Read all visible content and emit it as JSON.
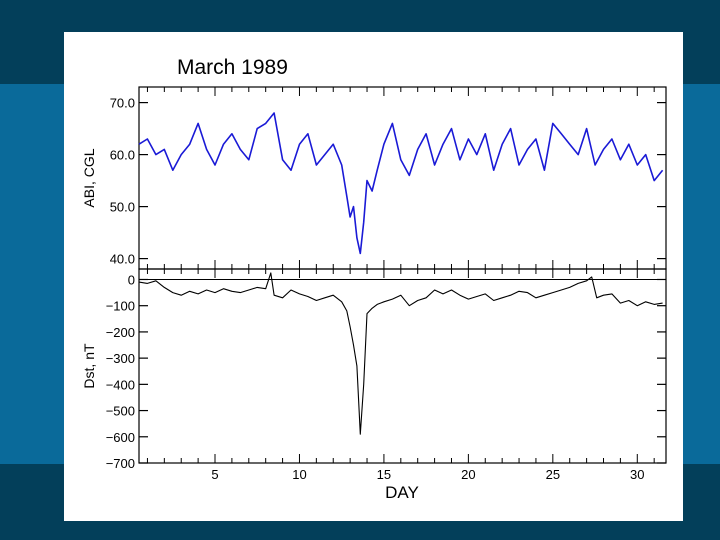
{
  "slide": {
    "background_colors": {
      "outer": "#033f5a",
      "inner": "#0a6a9a",
      "sheet": "#ffffff"
    }
  },
  "chart_data": {
    "type": "line",
    "title": "March 1989",
    "xlabel": "DAY",
    "xlim": [
      0.5,
      31.7
    ],
    "xticks": [
      5,
      10,
      15,
      20,
      25,
      30
    ],
    "panels": [
      {
        "name": "abi",
        "ylabel": "ABI, CGL",
        "ylim": [
          38,
          73
        ],
        "ytick_labels": [
          "70.0",
          "60.0",
          "50.0",
          "40.0"
        ],
        "ytick_values": [
          70,
          60,
          50,
          40
        ],
        "color": "#1a1ad6",
        "series": [
          {
            "values_x": [
              0.5,
              1,
              1.5,
              2,
              2.5,
              3,
              3.5,
              4,
              4.5,
              5,
              5.5,
              6,
              6.5,
              7,
              7.5,
              8,
              8.5,
              9,
              9.5,
              10,
              10.5,
              11,
              11.5,
              12,
              12.5,
              12.8,
              13,
              13.2,
              13.4,
              13.6,
              13.8,
              14,
              14.3,
              14.6,
              15,
              15.5,
              16,
              16.5,
              17,
              17.5,
              18,
              18.5,
              19,
              19.5,
              20,
              20.5,
              21,
              21.5,
              22,
              22.5,
              23,
              23.5,
              24,
              24.5,
              25,
              25.5,
              26,
              26.5,
              27,
              27.5,
              28,
              28.5,
              29,
              29.5,
              30,
              30.5,
              31,
              31.5
            ],
            "values_y": [
              62,
              63,
              60,
              61,
              57,
              60,
              62,
              66,
              61,
              58,
              62,
              64,
              61,
              59,
              65,
              66,
              68,
              59,
              57,
              62,
              64,
              58,
              60,
              62,
              58,
              52,
              48,
              50,
              44,
              41,
              47,
              55,
              53,
              57,
              62,
              66,
              59,
              56,
              61,
              64,
              58,
              62,
              65,
              59,
              63,
              60,
              64,
              57,
              62,
              65,
              58,
              61,
              63,
              57,
              66,
              64,
              62,
              60,
              65,
              58,
              61,
              63,
              59,
              62,
              58,
              60,
              55,
              57
            ]
          }
        ]
      },
      {
        "name": "dst",
        "ylabel": "Dst, nT",
        "ylim": [
          -700,
          40
        ],
        "ytick_labels": [
          "0",
          "−100",
          "−200",
          "−300",
          "−400",
          "−500",
          "−600",
          "−700"
        ],
        "ytick_values": [
          0,
          -100,
          -200,
          -300,
          -400,
          -500,
          -600,
          -700
        ],
        "color": "#000000",
        "series": [
          {
            "values_x": [
              0.5,
              1,
              1.5,
              2,
              2.5,
              3,
              3.5,
              4,
              4.5,
              5,
              5.5,
              6,
              6.5,
              7,
              7.5,
              8,
              8.3,
              8.5,
              9,
              9.5,
              10,
              10.5,
              11,
              11.5,
              12,
              12.5,
              12.8,
              13,
              13.2,
              13.4,
              13.6,
              13.8,
              14,
              14.3,
              14.6,
              15,
              15.5,
              16,
              16.5,
              17,
              17.5,
              18,
              18.5,
              19,
              19.5,
              20,
              20.5,
              21,
              21.5,
              22,
              22.5,
              23,
              23.5,
              24,
              24.5,
              25,
              25.5,
              26,
              26.5,
              27,
              27.3,
              27.6,
              28,
              28.5,
              29,
              29.5,
              30,
              30.5,
              31,
              31.5
            ],
            "values_y": [
              -10,
              -15,
              -5,
              -30,
              -50,
              -60,
              -45,
              -55,
              -40,
              -50,
              -35,
              -45,
              -50,
              -40,
              -30,
              -35,
              25,
              -60,
              -70,
              -40,
              -55,
              -65,
              -80,
              -70,
              -60,
              -85,
              -120,
              -180,
              -250,
              -330,
              -590,
              -400,
              -130,
              -110,
              -95,
              -85,
              -75,
              -60,
              -100,
              -80,
              -70,
              -40,
              -55,
              -40,
              -60,
              -75,
              -65,
              -55,
              -80,
              -70,
              -60,
              -45,
              -50,
              -70,
              -60,
              -50,
              -40,
              -30,
              -15,
              -5,
              10,
              -70,
              -60,
              -55,
              -90,
              -80,
              -100,
              -85,
              -95,
              -90
            ]
          }
        ]
      }
    ]
  }
}
